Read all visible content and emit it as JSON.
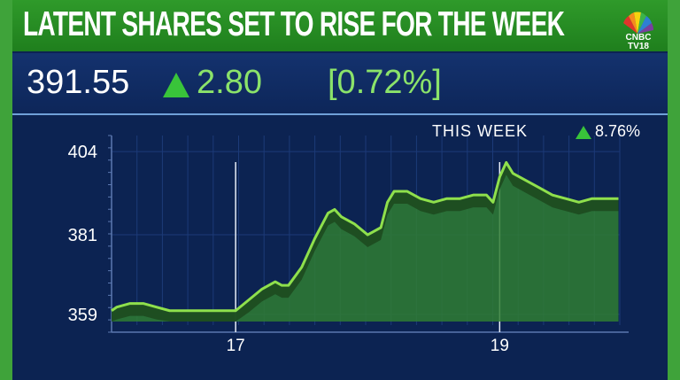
{
  "headline": "LATENT SHARES SET TO RISE FOR THE WEEK",
  "logo": {
    "line1": "CNBC",
    "line2": "TV18"
  },
  "quote": {
    "price": "391.55",
    "change": "2.80",
    "percent": "[0.72%]"
  },
  "this_week": {
    "label": "THIS WEEK",
    "value": "8.76%"
  },
  "colors": {
    "green_bar": "#2f9a2a",
    "up": "#39c43a",
    "text_green": "#8be36a",
    "background": "#0c2352",
    "line": "#8fe04c"
  },
  "chart_data": {
    "type": "area",
    "title": "",
    "xlabel": "",
    "ylabel": "",
    "y_ticks": [
      359,
      381,
      404
    ],
    "x_ticks": [
      {
        "label": "17",
        "x": 17
      },
      {
        "label": "19",
        "x": 19
      }
    ],
    "xlim": [
      16.06,
      19.91
    ],
    "ylim": [
      357,
      406
    ],
    "grid": true,
    "legend": "none",
    "series": [
      {
        "x": [
          16.06,
          16.1,
          16.2,
          16.3,
          16.4,
          16.5,
          16.6,
          16.7,
          16.8,
          16.9,
          17.0,
          17.1,
          17.2,
          17.3,
          17.35,
          17.4,
          17.5,
          17.6,
          17.7,
          17.75,
          17.8,
          17.9,
          18.0,
          18.1,
          18.15,
          18.2,
          18.3,
          18.4,
          18.5,
          18.6,
          18.7,
          18.8,
          18.9,
          18.95,
          19.0,
          19.05,
          19.1,
          19.2,
          19.3,
          19.4,
          19.5,
          19.6,
          19.7,
          19.8,
          19.9
        ],
        "values": [
          360,
          361,
          362,
          362,
          361,
          360,
          360,
          360,
          360,
          360,
          360,
          363,
          366,
          368,
          367,
          367,
          372,
          380,
          387,
          388,
          386,
          384,
          381,
          383,
          390,
          393,
          393,
          391,
          390,
          391,
          391,
          392,
          392,
          390,
          397,
          401,
          398,
          396,
          394,
          392,
          391,
          390,
          391,
          391,
          391
        ]
      }
    ]
  }
}
